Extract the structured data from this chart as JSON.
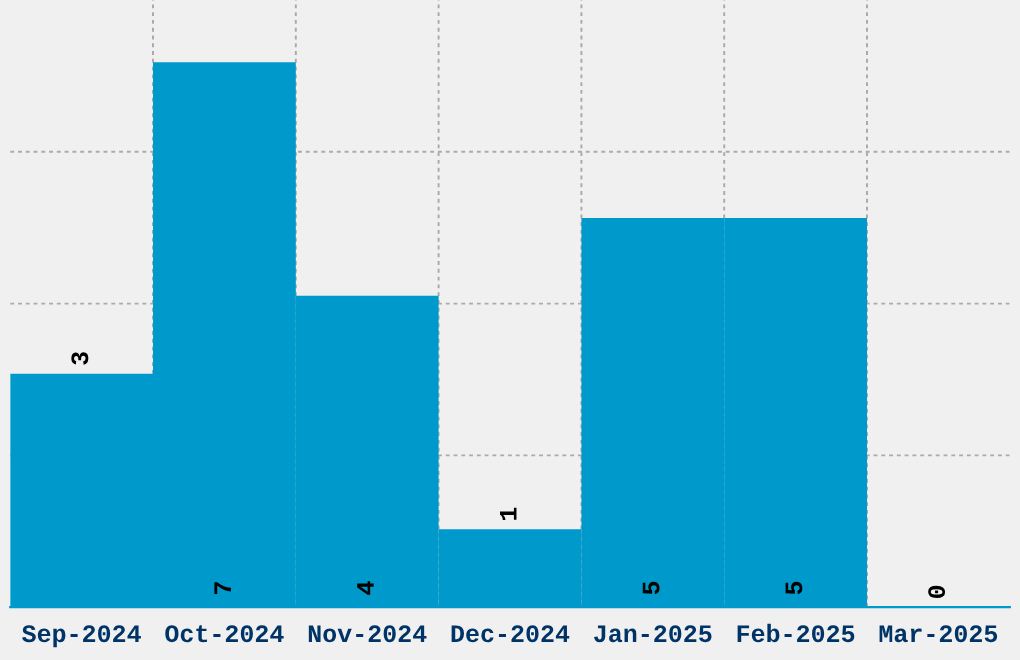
{
  "chart_data": {
    "type": "bar",
    "categories": [
      "Sep-2024",
      "Oct-2024",
      "Nov-2024",
      "Dec-2024",
      "Jan-2025",
      "Feb-2025",
      "Mar-2025"
    ],
    "values": [
      3,
      7,
      4,
      1,
      5,
      5,
      0
    ],
    "color": "#0099cc",
    "data_labels": true,
    "grid": true,
    "ylim": [
      0,
      7.8
    ],
    "yticks": [
      {
        "value": 1.95,
        "label": null
      },
      {
        "value": 3.9,
        "label": null
      },
      {
        "value": 5.85,
        "label": null
      }
    ],
    "tick_labels": "x"
  }
}
